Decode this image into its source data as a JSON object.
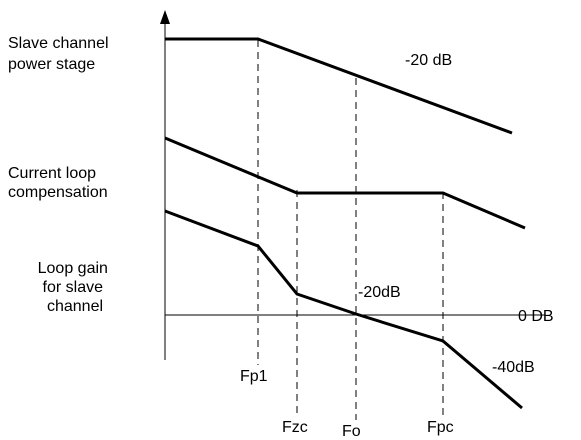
{
  "labels": {
    "slave_power_stage": [
      "Slave channel",
      "power stage"
    ],
    "current_loop_comp": [
      "Current loop",
      "compensation"
    ],
    "loop_gain_slave": [
      "Loop gain",
      "for slave",
      "channel"
    ],
    "slope_power_stage": "-20 dB",
    "slope_loop_gain_mid": "-20dB",
    "slope_loop_gain_high": "-40dB",
    "zero_db": "0 DB"
  },
  "frequencies": {
    "fp1": "Fp1",
    "fzc": "Fzc",
    "fo": "Fo",
    "fpc": "Fpc"
  },
  "colors": {
    "line": "#000000",
    "background": "#ffffff"
  }
}
